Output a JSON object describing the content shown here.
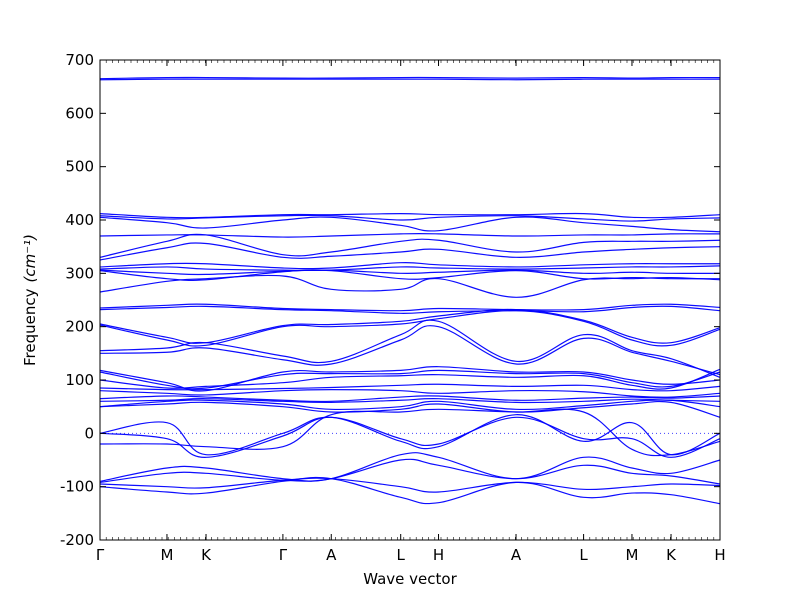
{
  "chart_data": {
    "type": "line",
    "xlabel": "Wave vector",
    "ylabel": "Frequency",
    "ylabel_unit": "(cm⁻¹)",
    "ylim": [
      -200,
      700
    ],
    "yticks": [
      -200,
      -100,
      0,
      100,
      200,
      300,
      400,
      500,
      600,
      700
    ],
    "xlim": [
      0,
      1
    ],
    "x_ticks": [
      {
        "label": "Γ",
        "x": 0.0
      },
      {
        "label": "M",
        "x": 0.108
      },
      {
        "label": "K",
        "x": 0.171
      },
      {
        "label": "Γ",
        "x": 0.295
      },
      {
        "label": "A",
        "x": 0.373
      },
      {
        "label": "L",
        "x": 0.485
      },
      {
        "label": "H",
        "x": 0.546
      },
      {
        "label": "A",
        "x": 0.671
      },
      {
        "label": "L",
        "x": 0.78
      },
      {
        "label": "M",
        "x": 0.858
      },
      {
        "label": "K",
        "x": 0.921
      },
      {
        "label": "H",
        "x": 1.0
      }
    ],
    "zero_line": "dotted",
    "band_color": "#0000ff",
    "series": [
      {
        "x": [
          0,
          0.108,
          0.171,
          0.295,
          0.373,
          0.485,
          0.546,
          0.671,
          0.78,
          0.858,
          0.921,
          1
        ],
        "y": [
          665,
          667,
          667,
          666,
          666,
          667,
          667,
          666,
          667,
          666,
          667,
          667
        ]
      },
      {
        "x": [
          0,
          0.108,
          0.171,
          0.295,
          0.373,
          0.485,
          0.546,
          0.671,
          0.78,
          0.858,
          0.921,
          1
        ],
        "y": [
          663,
          664,
          664,
          664,
          664,
          664,
          664,
          663,
          664,
          664,
          664,
          664
        ]
      },
      {
        "x": [
          0,
          0.108,
          0.171,
          0.295,
          0.373,
          0.485,
          0.546,
          0.671,
          0.78,
          0.858,
          0.921,
          1
        ],
        "y": [
          412,
          405,
          405,
          410,
          410,
          412,
          410,
          410,
          412,
          405,
          405,
          410
        ]
      },
      {
        "x": [
          0,
          0.108,
          0.171,
          0.295,
          0.373,
          0.485,
          0.546,
          0.671,
          0.78,
          0.858,
          0.921,
          1
        ],
        "y": [
          408,
          402,
          404,
          408,
          408,
          400,
          405,
          408,
          402,
          398,
          402,
          404
        ]
      },
      {
        "x": [
          0,
          0.108,
          0.171,
          0.295,
          0.373,
          0.485,
          0.546,
          0.671,
          0.78,
          0.858,
          0.921,
          1
        ],
        "y": [
          405,
          395,
          385,
          400,
          405,
          390,
          380,
          405,
          395,
          388,
          382,
          378
        ]
      },
      {
        "x": [
          0,
          0.108,
          0.171,
          0.295,
          0.373,
          0.485,
          0.546,
          0.671,
          0.78,
          0.858,
          0.921,
          1
        ],
        "y": [
          370,
          372,
          372,
          368,
          370,
          374,
          374,
          370,
          372,
          372,
          374,
          374
        ]
      },
      {
        "x": [
          0,
          0.108,
          0.171,
          0.295,
          0.373,
          0.485,
          0.546,
          0.671,
          0.78,
          0.858,
          0.921,
          1
        ],
        "y": [
          330,
          360,
          372,
          335,
          340,
          360,
          362,
          340,
          358,
          360,
          360,
          362
        ]
      },
      {
        "x": [
          0,
          0.108,
          0.171,
          0.295,
          0.373,
          0.485,
          0.546,
          0.671,
          0.78,
          0.858,
          0.921,
          1
        ],
        "y": [
          325,
          348,
          356,
          330,
          332,
          340,
          345,
          330,
          340,
          345,
          348,
          350
        ]
      },
      {
        "x": [
          0,
          0.108,
          0.171,
          0.295,
          0.373,
          0.485,
          0.546,
          0.671,
          0.78,
          0.858,
          0.921,
          1
        ],
        "y": [
          312,
          318,
          318,
          310,
          310,
          320,
          316,
          312,
          316,
          318,
          318,
          318
        ]
      },
      {
        "x": [
          0,
          0.108,
          0.171,
          0.295,
          0.373,
          0.485,
          0.546,
          0.671,
          0.78,
          0.858,
          0.921,
          1
        ],
        "y": [
          308,
          312,
          308,
          306,
          306,
          312,
          310,
          308,
          310,
          312,
          312,
          314
        ]
      },
      {
        "x": [
          0,
          0.108,
          0.171,
          0.295,
          0.373,
          0.485,
          0.546,
          0.671,
          0.78,
          0.858,
          0.921,
          1
        ],
        "y": [
          306,
          300,
          298,
          304,
          306,
          300,
          302,
          306,
          300,
          302,
          300,
          300
        ]
      },
      {
        "x": [
          0,
          0.108,
          0.171,
          0.295,
          0.373,
          0.485,
          0.546,
          0.671,
          0.78,
          0.858,
          0.921,
          1
        ],
        "y": [
          305,
          290,
          288,
          303,
          305,
          290,
          292,
          305,
          290,
          292,
          290,
          290
        ]
      },
      {
        "x": [
          0,
          0.108,
          0.171,
          0.295,
          0.373,
          0.485,
          0.546,
          0.671,
          0.78,
          0.858,
          0.921,
          1
        ],
        "y": [
          265,
          285,
          290,
          295,
          270,
          270,
          290,
          255,
          288,
          290,
          292,
          288
        ]
      },
      {
        "x": [
          0,
          0.108,
          0.171,
          0.295,
          0.373,
          0.485,
          0.546,
          0.671,
          0.78,
          0.858,
          0.921,
          1
        ],
        "y": [
          235,
          240,
          242,
          234,
          232,
          230,
          234,
          232,
          232,
          240,
          242,
          236
        ]
      },
      {
        "x": [
          0,
          0.108,
          0.171,
          0.295,
          0.373,
          0.485,
          0.546,
          0.671,
          0.78,
          0.858,
          0.921,
          1
        ],
        "y": [
          232,
          236,
          238,
          232,
          230,
          225,
          228,
          230,
          228,
          236,
          238,
          230
        ]
      },
      {
        "x": [
          0,
          0.108,
          0.171,
          0.295,
          0.373,
          0.485,
          0.546,
          0.671,
          0.78,
          0.858,
          0.921,
          1
        ],
        "y": [
          205,
          180,
          170,
          202,
          204,
          210,
          220,
          232,
          212,
          180,
          170,
          198
        ]
      },
      {
        "x": [
          0,
          0.108,
          0.171,
          0.295,
          0.373,
          0.485,
          0.546,
          0.671,
          0.78,
          0.858,
          0.921,
          1
        ],
        "y": [
          203,
          175,
          165,
          200,
          200,
          205,
          215,
          230,
          210,
          175,
          165,
          195
        ]
      },
      {
        "x": [
          0,
          0.108,
          0.171,
          0.295,
          0.373,
          0.485,
          0.546,
          0.671,
          0.78,
          0.858,
          0.921,
          1
        ],
        "y": [
          155,
          160,
          170,
          145,
          135,
          185,
          210,
          135,
          185,
          155,
          140,
          105
        ]
      },
      {
        "x": [
          0,
          0.108,
          0.171,
          0.295,
          0.373,
          0.485,
          0.546,
          0.671,
          0.78,
          0.858,
          0.921,
          1
        ],
        "y": [
          150,
          152,
          160,
          138,
          130,
          175,
          200,
          130,
          178,
          152,
          135,
          110
        ]
      },
      {
        "x": [
          0,
          0.108,
          0.171,
          0.295,
          0.373,
          0.485,
          0.546,
          0.671,
          0.78,
          0.858,
          0.921,
          1
        ],
        "y": [
          118,
          95,
          80,
          115,
          115,
          118,
          125,
          115,
          115,
          100,
          92,
          100
        ]
      },
      {
        "x": [
          0,
          0.108,
          0.171,
          0.295,
          0.373,
          0.485,
          0.546,
          0.671,
          0.78,
          0.858,
          0.921,
          1
        ],
        "y": [
          115,
          90,
          85,
          110,
          112,
          112,
          118,
          112,
          112,
          95,
          88,
          115
        ]
      },
      {
        "x": [
          0,
          0.108,
          0.171,
          0.295,
          0.373,
          0.485,
          0.546,
          0.671,
          0.78,
          0.858,
          0.921,
          1
        ],
        "y": [
          100,
          85,
          88,
          95,
          105,
          108,
          110,
          105,
          108,
          90,
          85,
          120
        ]
      },
      {
        "x": [
          0,
          0.108,
          0.171,
          0.295,
          0.373,
          0.485,
          0.546,
          0.671,
          0.78,
          0.858,
          0.921,
          1
        ],
        "y": [
          85,
          82,
          82,
          84,
          86,
          90,
          92,
          88,
          90,
          82,
          80,
          88
        ]
      },
      {
        "x": [
          0,
          0.108,
          0.171,
          0.295,
          0.373,
          0.485,
          0.546,
          0.671,
          0.78,
          0.858,
          0.921,
          1
        ],
        "y": [
          80,
          75,
          72,
          80,
          82,
          80,
          75,
          80,
          78,
          70,
          68,
          75
        ]
      },
      {
        "x": [
          0,
          0.108,
          0.171,
          0.295,
          0.373,
          0.485,
          0.546,
          0.671,
          0.78,
          0.858,
          0.921,
          1
        ],
        "y": [
          65,
          70,
          68,
          62,
          60,
          68,
          70,
          62,
          66,
          68,
          66,
          70
        ]
      },
      {
        "x": [
          0,
          0.108,
          0.171,
          0.295,
          0.373,
          0.485,
          0.546,
          0.671,
          0.78,
          0.858,
          0.921,
          1
        ],
        "y": [
          60,
          62,
          65,
          60,
          58,
          62,
          65,
          58,
          60,
          64,
          62,
          60
        ]
      },
      {
        "x": [
          0,
          0.108,
          0.171,
          0.295,
          0.373,
          0.485,
          0.546,
          0.671,
          0.78,
          0.858,
          0.921,
          1
        ],
        "y": [
          50,
          60,
          62,
          55,
          45,
          50,
          60,
          45,
          52,
          60,
          62,
          50
        ]
      },
      {
        "x": [
          0,
          0.108,
          0.171,
          0.295,
          0.373,
          0.485,
          0.546,
          0.671,
          0.78,
          0.858,
          0.921,
          1
        ],
        "y": [
          50,
          55,
          58,
          50,
          40,
          45,
          55,
          40,
          48,
          55,
          58,
          30
        ]
      },
      {
        "x": [
          0,
          0.108,
          0.171,
          0.295,
          0.373,
          0.485,
          0.546,
          0.671,
          0.78,
          0.858,
          0.921,
          1
        ],
        "y": [
          0,
          20,
          -40,
          0,
          30,
          -15,
          -25,
          35,
          -15,
          20,
          -40,
          0
        ]
      },
      {
        "x": [
          0,
          0.108,
          0.171,
          0.295,
          0.373,
          0.485,
          0.546,
          0.671,
          0.78,
          0.858,
          0.921,
          1
        ],
        "y": [
          0,
          -10,
          -45,
          -5,
          30,
          -10,
          -20,
          30,
          -10,
          -10,
          -45,
          -10
        ]
      },
      {
        "x": [
          0,
          0.108,
          0.171,
          0.295,
          0.373,
          0.485,
          0.546,
          0.671,
          0.78,
          0.858,
          0.921,
          1
        ],
        "y": [
          -20,
          -20,
          -25,
          -25,
          35,
          40,
          45,
          40,
          40,
          -30,
          -40,
          -15
        ]
      },
      {
        "x": [
          0,
          0.108,
          0.171,
          0.295,
          0.373,
          0.485,
          0.546,
          0.671,
          0.78,
          0.858,
          0.921,
          1
        ],
        "y": [
          -90,
          -65,
          -65,
          -85,
          -85,
          -40,
          -45,
          -85,
          -45,
          -65,
          -75,
          -50
        ]
      },
      {
        "x": [
          0,
          0.108,
          0.171,
          0.295,
          0.373,
          0.485,
          0.546,
          0.671,
          0.78,
          0.858,
          0.921,
          1
        ],
        "y": [
          -92,
          -75,
          -75,
          -88,
          -85,
          -50,
          -60,
          -85,
          -60,
          -75,
          -80,
          -95
        ]
      },
      {
        "x": [
          0,
          0.108,
          0.171,
          0.295,
          0.373,
          0.485,
          0.546,
          0.671,
          0.78,
          0.858,
          0.921,
          1
        ],
        "y": [
          -95,
          -100,
          -102,
          -88,
          -85,
          -100,
          -110,
          -92,
          -105,
          -100,
          -95,
          -98
        ]
      },
      {
        "x": [
          0,
          0.108,
          0.171,
          0.295,
          0.373,
          0.485,
          0.546,
          0.671,
          0.78,
          0.858,
          0.921,
          1
        ],
        "y": [
          -100,
          -110,
          -112,
          -90,
          -85,
          -120,
          -130,
          -92,
          -120,
          -112,
          -115,
          -132
        ]
      }
    ]
  }
}
